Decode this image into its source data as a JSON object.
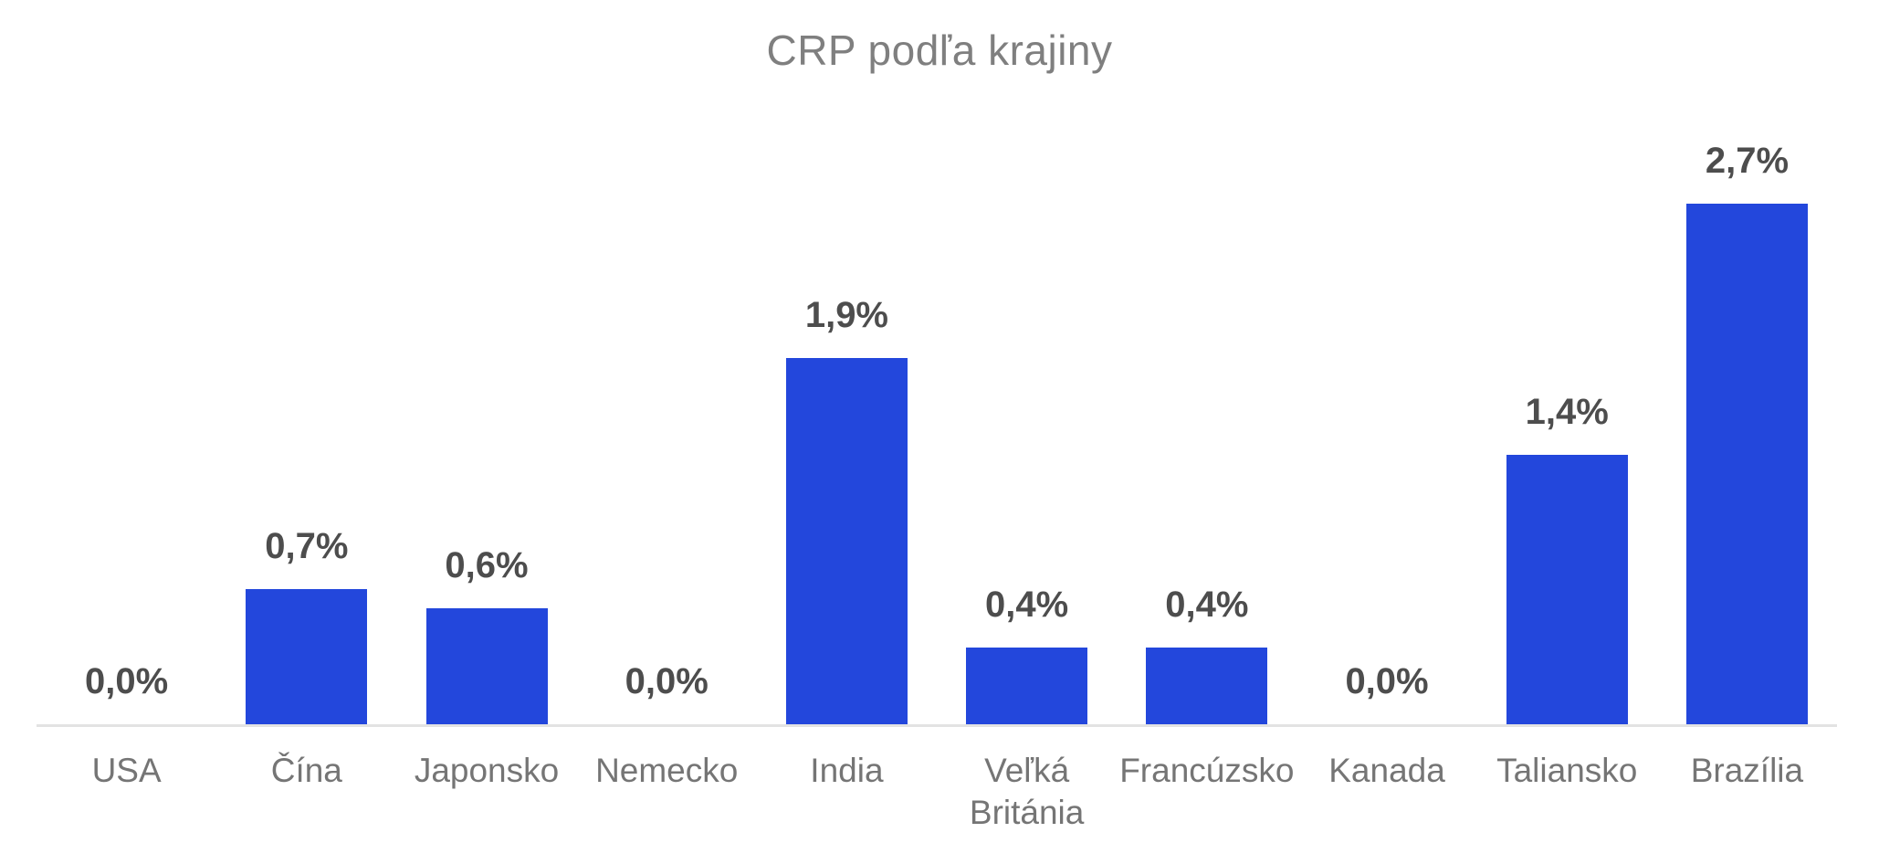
{
  "chart_data": {
    "type": "bar",
    "title": "CRP podľa krajiny",
    "categories": [
      "USA",
      "Čína",
      "Japonsko",
      "Nemecko",
      "India",
      "Veľká Británia",
      "Francúzsko",
      "Kanada",
      "Taliansko",
      "Brazília"
    ],
    "values": [
      0.0,
      0.7,
      0.6,
      0.0,
      1.9,
      0.4,
      0.4,
      0.0,
      1.4,
      2.7
    ],
    "data_labels": [
      "0,0%",
      "0,7%",
      "0,6%",
      "0,0%",
      "1,9%",
      "0,4%",
      "0,4%",
      "0,0%",
      "1,4%",
      "2,7%"
    ],
    "unit": "%",
    "xlabel": "",
    "ylabel": "",
    "ylim": [
      0,
      3.0
    ],
    "grid": false,
    "legend_position": "none",
    "colors": {
      "bar": "#2347DC",
      "title": "#7F7F7F",
      "data_label": "#4D4D4D",
      "axis_label": "#757575",
      "axis_line": "#E3E3E3",
      "background": "#FFFFFF"
    }
  }
}
